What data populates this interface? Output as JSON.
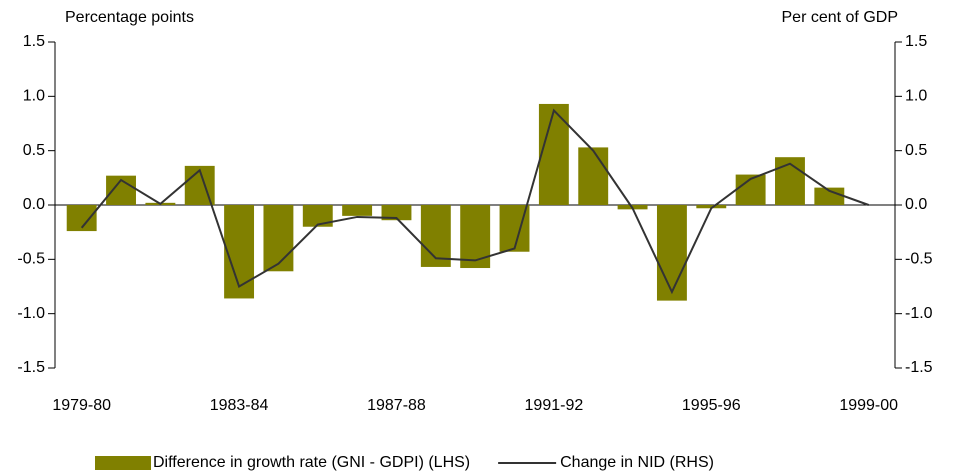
{
  "chart_data": {
    "type": "bar",
    "y_label": "Percentage points",
    "y2_label": "Per cent of GDP",
    "categories": [
      "1979-80",
      null,
      null,
      null,
      "1983-84",
      null,
      null,
      null,
      "1987-88",
      null,
      null,
      null,
      "1991-92",
      null,
      null,
      null,
      "1995-96",
      null,
      null,
      null,
      "1999-00"
    ],
    "series": [
      {
        "name": "Difference in growth rate (GNI - GDPI) (LHS)",
        "type": "bar",
        "color": "#808000",
        "values": [
          -0.24,
          0.27,
          0.02,
          0.36,
          -0.86,
          -0.61,
          -0.2,
          -0.1,
          -0.14,
          -0.57,
          -0.58,
          -0.43,
          0.93,
          0.53,
          -0.04,
          -0.88,
          -0.03,
          0.28,
          0.44,
          0.16,
          null
        ]
      },
      {
        "name": "Change in NID (RHS)",
        "type": "line",
        "axis": "y2",
        "color": "#333333",
        "values": [
          -0.21,
          0.23,
          0.01,
          0.32,
          -0.75,
          -0.54,
          -0.18,
          -0.11,
          -0.12,
          -0.49,
          -0.51,
          -0.4,
          0.87,
          0.5,
          -0.03,
          -0.8,
          -0.03,
          0.24,
          0.38,
          0.13,
          0.0
        ]
      }
    ],
    "ylim": [
      -1.5,
      1.5
    ],
    "yticks": [
      1.5,
      {
        "value": 1.0,
        "label": "1.0"
      },
      0.5,
      {
        "value": 0.0,
        "label": "0.0"
      },
      -0.5,
      {
        "value": -1.0,
        "label": "-1.0"
      },
      -1.5
    ],
    "y2lim": [
      -1.5,
      1.5
    ],
    "y2ticks": [
      1.5,
      {
        "value": 1.0,
        "label": "1.0"
      },
      0.5,
      {
        "value": 0.0,
        "label": "0.0"
      },
      -0.5,
      {
        "value": -1.0,
        "label": "-1.0"
      },
      -1.5
    ],
    "grid": false,
    "legend": "bottom"
  }
}
